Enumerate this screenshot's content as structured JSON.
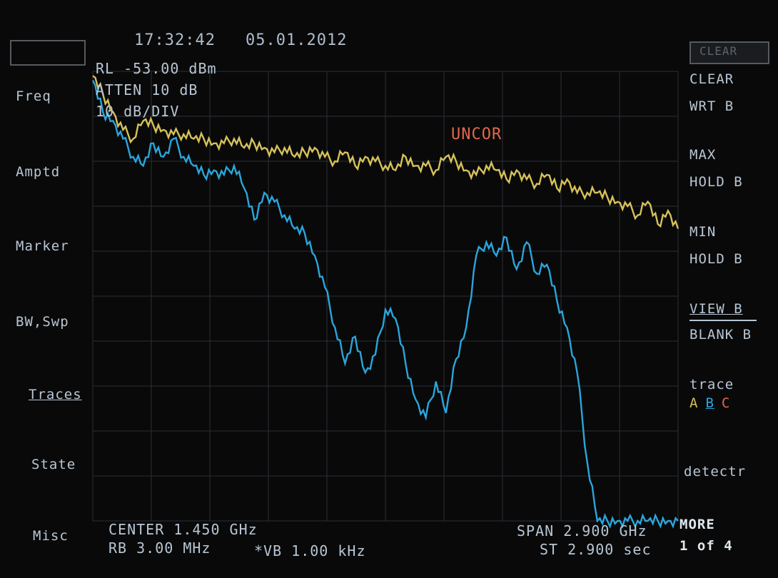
{
  "header": {
    "time": "17:32:42",
    "date": "05.01.2012"
  },
  "settings": {
    "ref_level": "RL -53.00 dBm",
    "atten": "ATTEN 10 dB",
    "scale": "10 dB/DIV"
  },
  "status": {
    "uncor": "UNCOR"
  },
  "left_menu": [
    "Freq",
    "Amptd",
    "Marker",
    "BW,Swp",
    "Traces",
    "State",
    "Misc"
  ],
  "right_menu": {
    "top_box": "CLEAR",
    "clear": "CLEAR",
    "clear2": "WRT B",
    "max": "MAX",
    "max2": "HOLD B",
    "min": "MIN",
    "min2": "HOLD B",
    "view": "VIEW B",
    "blank": "BLANK B",
    "trace_label": "trace",
    "trace_a": "A",
    "trace_b": "B",
    "trace_c": "C",
    "detectr": "detectr",
    "more": "MORE",
    "page": "1 of 4"
  },
  "footer": {
    "center": "CENTER 1.450 GHz",
    "rbw": "RB 3.00 MHz",
    "vbw": "*VB 1.00 kHz",
    "span": "SPAN 2.900 GHz",
    "sweep": "ST 2.900 sec"
  },
  "colors": {
    "trace_a": "#d6c25a",
    "trace_b": "#2aa6dc",
    "uncor": "#e0684a",
    "grid": "#2b3036",
    "text": "#b8c6d4"
  },
  "chart_data": {
    "type": "line",
    "xlabel": "",
    "ylabel": "",
    "xlim": [
      0,
      2.9
    ],
    "ylim": [
      -153,
      -53
    ],
    "grid": true,
    "series": [
      {
        "trace": "A",
        "x": [
          0,
          0.05,
          0.1,
          0.15,
          0.2,
          0.25,
          0.3,
          0.35,
          0.4,
          0.45,
          0.5,
          0.55,
          0.6,
          0.65,
          0.7,
          0.75,
          0.8,
          0.85,
          0.9,
          0.95,
          1.0,
          1.05,
          1.1,
          1.15,
          1.2,
          1.25,
          1.3,
          1.35,
          1.4,
          1.45,
          1.5,
          1.55,
          1.6,
          1.65,
          1.7,
          1.75,
          1.8,
          1.85,
          1.9,
          1.95,
          2.0,
          2.05,
          2.1,
          2.15,
          2.2,
          2.25,
          2.3,
          2.35,
          2.4,
          2.45,
          2.5,
          2.55,
          2.6,
          2.65,
          2.7,
          2.75,
          2.8,
          2.85,
          2.9
        ],
        "values": [
          -54,
          -58,
          -62,
          -66,
          -68,
          -64,
          -65,
          -66,
          -67,
          -67,
          -68,
          -68,
          -69,
          -69,
          -68,
          -70,
          -69,
          -70,
          -71,
          -70,
          -72,
          -71,
          -70,
          -72,
          -73,
          -71,
          -74,
          -72,
          -73,
          -74,
          -75,
          -72,
          -74,
          -74,
          -75,
          -72,
          -73,
          -75,
          -76,
          -74,
          -75,
          -77,
          -75,
          -77,
          -78,
          -76,
          -79,
          -77,
          -80,
          -80,
          -80,
          -81,
          -82,
          -83,
          -85,
          -82,
          -87,
          -84,
          -88
        ]
      },
      {
        "trace": "B",
        "x": [
          0,
          0.05,
          0.1,
          0.15,
          0.2,
          0.25,
          0.3,
          0.35,
          0.4,
          0.45,
          0.5,
          0.55,
          0.6,
          0.65,
          0.7,
          0.75,
          0.8,
          0.85,
          0.9,
          0.95,
          1.0,
          1.05,
          1.1,
          1.15,
          1.2,
          1.25,
          1.3,
          1.35,
          1.4,
          1.45,
          1.5,
          1.55,
          1.6,
          1.65,
          1.7,
          1.75,
          1.8,
          1.85,
          1.9,
          1.95,
          2.0,
          2.05,
          2.1,
          2.15,
          2.2,
          2.25,
          2.3,
          2.35,
          2.4,
          2.45,
          2.5,
          2.55,
          2.6,
          2.65,
          2.7,
          2.75,
          2.8,
          2.85,
          2.9
        ],
        "values": [
          -55,
          -62,
          -64,
          -68,
          -72,
          -74,
          -69,
          -72,
          -68,
          -72,
          -74,
          -76,
          -75,
          -76,
          -74,
          -79,
          -86,
          -80,
          -82,
          -85,
          -88,
          -89,
          -94,
          -101,
          -110,
          -118,
          -112,
          -120,
          -116,
          -106,
          -108,
          -118,
          -126,
          -130,
          -122,
          -129,
          -117,
          -110,
          -94,
          -91,
          -94,
          -90,
          -97,
          -91,
          -98,
          -96,
          -104,
          -110,
          -120,
          -140,
          -153,
          -153,
          -153,
          -153,
          -153,
          -153,
          -153,
          -153,
          -153
        ]
      }
    ]
  }
}
